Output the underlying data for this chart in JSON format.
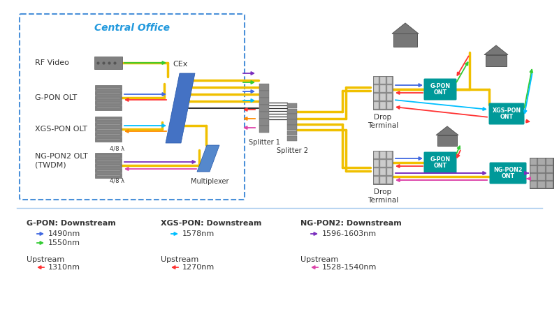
{
  "bg_color": "#ffffff",
  "colors": {
    "gpon_ds": "#4169e1",
    "gpon_us": "#ff3333",
    "xgspon_ds": "#00bfff",
    "xgspon_us": "#ff8c00",
    "ngpon2_ds": "#7b2fbe",
    "ngpon2_us": "#dd44aa",
    "green": "#33cc33",
    "yellow": "#f0c000",
    "teal": "#009999",
    "gray": "#808080",
    "blue_cex": "#4472c4",
    "dark_gray": "#555555",
    "co_border": "#4a90d9",
    "co_label": "#2299dd"
  },
  "legend": {
    "gpon_title": "G-PON: Downstream",
    "gpon_ds1_color": "#4169e1",
    "gpon_ds1_label": "1490nm",
    "gpon_ds2_color": "#33cc33",
    "gpon_ds2_label": "1550nm",
    "gpon_us_label": "Upstream",
    "gpon_us1_color": "#ff3333",
    "gpon_us1_label": "1310nm",
    "xgspon_title": "XGS-PON: Downstream",
    "xgspon_ds1_color": "#00bfff",
    "xgspon_ds1_label": "1578nm",
    "xgspon_us_label": "Upstream",
    "xgspon_us1_color": "#ff3333",
    "xgspon_us1_label": "1270nm",
    "ngpon2_title": "NG-PON2: Downstream",
    "ngpon2_ds1_color": "#7b2fbe",
    "ngpon2_ds1_label": "1596-1603nm",
    "ngpon2_us_label": "Upstream",
    "ngpon2_us1_color": "#dd44aa",
    "ngpon2_us1_label": "1528-1540nm"
  }
}
